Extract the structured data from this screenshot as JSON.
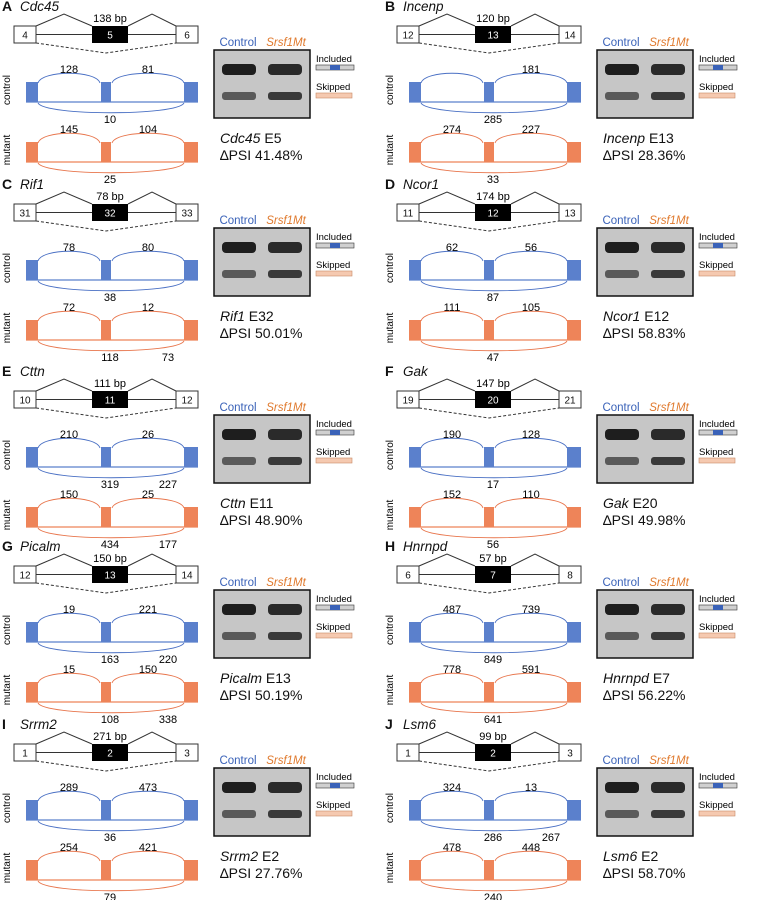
{
  "header_labels": {
    "control": "Control",
    "mutant": "Srsf1Mt"
  },
  "row_labels": {
    "control": "control",
    "mutant": "mutant"
  },
  "isoform_labels": {
    "included": "Included",
    "skipped": "Skipped"
  },
  "colors": {
    "control": "#4a70c4",
    "mutant": "#e8764d",
    "control_fill": "#5b80cc",
    "mutant_fill": "#ee8459",
    "gel_bg": "#c6c6c6",
    "included_bar": "#d0d0d0",
    "skipped_bar": "#f5c9b0",
    "skipped_bar_blue": "#bcd0f0"
  },
  "panels": [
    {
      "letter": "A",
      "gene": "Cdc45",
      "exons": [
        "4",
        "5",
        "6"
      ],
      "size": "138 bp",
      "control": {
        "inc1": "128",
        "inc2": "81",
        "skip": "10"
      },
      "mutant": {
        "inc1": "145",
        "inc2": "104",
        "skip": "25"
      },
      "exon_label": "E5",
      "dpsi": "∆PSI 41.48%"
    },
    {
      "letter": "B",
      "gene": "Incenp",
      "exons": [
        "12",
        "13",
        "14"
      ],
      "size": "120 bp",
      "control": {
        "inc1": "",
        "inc2": "181",
        "skip": "285"
      },
      "mutant": {
        "inc1": "274",
        "inc2": "227",
        "skip": "33"
      },
      "exon_label": "E13",
      "dpsi": "∆PSI 28.36%"
    },
    {
      "letter": "C",
      "gene": "Rif1",
      "exons": [
        "31",
        "32",
        "33"
      ],
      "size": "78 bp",
      "control": {
        "inc1": "78",
        "inc2": "80",
        "skip": "38"
      },
      "mutant": {
        "inc1": "72",
        "inc2": "12",
        "skip": "118",
        "extra": "73"
      },
      "exon_label": "E32",
      "dpsi": "∆PSI 50.01%"
    },
    {
      "letter": "D",
      "gene": "Ncor1",
      "exons": [
        "11",
        "12",
        "13"
      ],
      "size": "174 bp",
      "control": {
        "inc1": "62",
        "inc2": "56",
        "skip": "87"
      },
      "mutant": {
        "inc1": "111",
        "inc2": "105",
        "skip": "47"
      },
      "exon_label": "E12",
      "dpsi": "∆PSI 58.83%"
    },
    {
      "letter": "E",
      "gene": "Cttn",
      "exons": [
        "10",
        "11",
        "12"
      ],
      "size": "111 bp",
      "control": {
        "inc1": "210",
        "inc2": "26",
        "skip": "319",
        "extra": "227"
      },
      "mutant": {
        "inc1": "150",
        "inc2": "25",
        "skip": "434",
        "extra": "177"
      },
      "exon_label": "E11",
      "dpsi": "∆PSI 48.90%"
    },
    {
      "letter": "F",
      "gene": "Gak",
      "exons": [
        "19",
        "20",
        "21"
      ],
      "size": "147 bp",
      "control": {
        "inc1": "190",
        "inc2": "128",
        "skip": "17"
      },
      "mutant": {
        "inc1": "152",
        "inc2": "110",
        "skip": "56"
      },
      "exon_label": "E20",
      "dpsi": "∆PSI 49.98%"
    },
    {
      "letter": "G",
      "gene": "Picalm",
      "exons": [
        "12",
        "13",
        "14"
      ],
      "size": "150 bp",
      "control": {
        "inc1": "19",
        "inc2": "221",
        "skip": "163",
        "extra": "220"
      },
      "mutant": {
        "inc1": "15",
        "inc2": "150",
        "skip": "108",
        "extra": "338"
      },
      "exon_label": "E13",
      "dpsi": "∆PSI 50.19%"
    },
    {
      "letter": "H",
      "gene": "Hnrnpd",
      "exons": [
        "6",
        "7",
        "8"
      ],
      "size": "57 bp",
      "control": {
        "inc1": "487",
        "inc2": "739",
        "skip": "849"
      },
      "mutant": {
        "inc1": "778",
        "inc2": "591",
        "skip": "641"
      },
      "exon_label": "E7",
      "dpsi": "∆PSI 56.22%"
    },
    {
      "letter": "I",
      "gene": "Srrm2",
      "exons": [
        "1",
        "2",
        "3"
      ],
      "size": "271 bp",
      "control": {
        "inc1": "289",
        "inc2": "473",
        "skip": "36"
      },
      "mutant": {
        "inc1": "254",
        "inc2": "421",
        "skip": "79"
      },
      "exon_label": "E2",
      "dpsi": "∆PSI 27.76%"
    },
    {
      "letter": "J",
      "gene": "Lsm6",
      "exons": [
        "1",
        "2",
        "3"
      ],
      "size": "99 bp",
      "control": {
        "inc1": "324",
        "inc2": "13",
        "skip": "286",
        "extra": "267"
      },
      "mutant": {
        "inc1": "478",
        "inc2": "448",
        "skip": "240"
      },
      "exon_label": "E2",
      "dpsi": "∆PSI 58.70%"
    }
  ]
}
